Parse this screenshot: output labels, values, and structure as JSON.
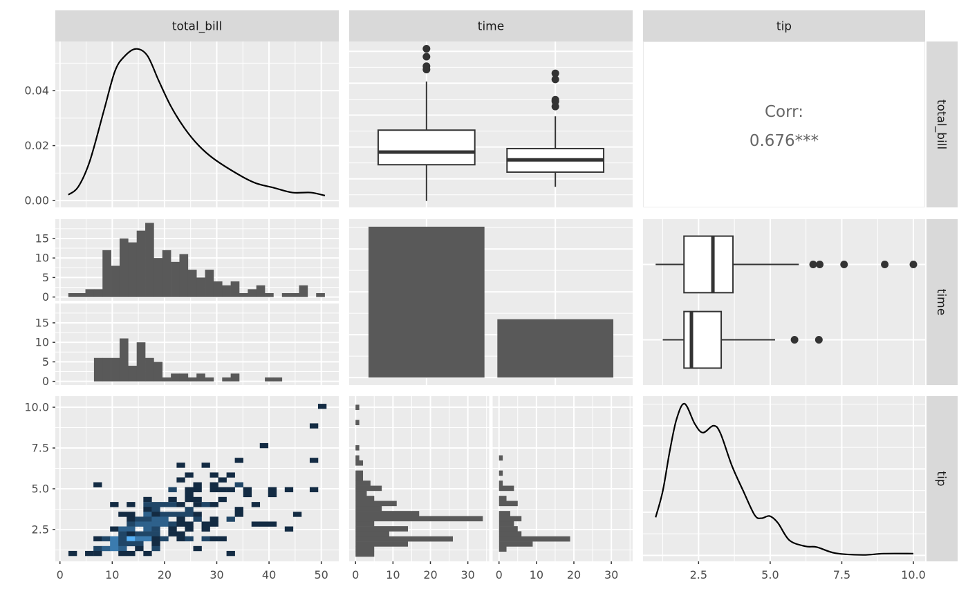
{
  "variables": [
    "total_bill",
    "time",
    "tip"
  ],
  "strips": {
    "top": [
      "total_bill",
      "time",
      "tip"
    ],
    "right": [
      "total_bill",
      "time",
      "tip"
    ]
  },
  "axes": {
    "left": [
      [
        "0.00",
        "0.02",
        "0.04"
      ],
      [
        "0",
        "5",
        "10",
        "15"
      ],
      [
        "2.5",
        "5.0",
        "7.5",
        "10.0"
      ]
    ],
    "bottom": [
      [
        "0",
        "10",
        "20",
        "30",
        "40",
        "50"
      ],
      [
        "0",
        "10",
        "20",
        "30"
      ],
      [
        "2.5",
        "5.0",
        "7.5",
        "10.0"
      ]
    ]
  },
  "colors": {
    "panel_background": "#EBEBEB",
    "strip_background": "#D9D9D9",
    "grid": "#FFFFFF",
    "bar_fill": "#595959",
    "box_line": "#333333",
    "box_fill": "#FFFFFF",
    "density_line": "#000000",
    "bin2d_low": "#132B43",
    "bin2d_high": "#56B1F7",
    "corr_text": "#666666"
  },
  "chart_data": [
    {
      "row": 1,
      "col": 1,
      "type": "density",
      "var": "total_bill",
      "xlim": [
        -0.89,
        53.35
      ],
      "ylim": [
        -0.0025,
        0.0579
      ],
      "xbreaks": [
        0,
        10,
        20,
        30,
        40,
        50
      ],
      "ybreaks": [
        0,
        0.02,
        0.04
      ],
      "x": [
        1.6,
        3.5,
        5.7,
        8.4,
        10.5,
        12.3,
        14.5,
        16.7,
        18.9,
        21.2,
        23.8,
        26.5,
        29.5,
        34.4,
        37.5,
        41.0,
        44.5,
        48.0,
        50.7
      ],
      "y": [
        0.0021,
        0.005,
        0.0143,
        0.0327,
        0.047,
        0.0524,
        0.0552,
        0.0528,
        0.0436,
        0.0344,
        0.0264,
        0.0201,
        0.0151,
        0.0092,
        0.0063,
        0.0046,
        0.0029,
        0.0029,
        0.0018
      ]
    },
    {
      "row": 1,
      "col": 2,
      "type": "boxplot",
      "orientation": "vertical",
      "xvar": "time",
      "yvar": "total_bill",
      "xlim": [
        0.4,
        2.6
      ],
      "ylim": [
        1.05,
        53.1
      ],
      "ybreaks": [
        10,
        20,
        30,
        40,
        50
      ],
      "groups": [
        {
          "lower_whisker": 3.07,
          "q1": 14.44,
          "median": 18.39,
          "q3": 25.29,
          "upper_whisker": 40.55,
          "outliers": [
            44.3,
            45.35,
            48.33,
            50.81
          ]
        },
        {
          "lower_whisker": 7.51,
          "q1": 12.12,
          "median": 15.97,
          "q3": 19.5,
          "upper_whisker": 29.63,
          "outliers": [
            32.68,
            34.3,
            34.83,
            41.19,
            43.11
          ]
        }
      ]
    },
    {
      "row": 1,
      "col": 3,
      "type": "text",
      "label": "Corr:",
      "value": "0.676***"
    },
    {
      "row": 2,
      "col": 1,
      "type": "histogram",
      "var": "total_bill",
      "facet_by": "time",
      "xlim": [
        -0.89,
        53.35
      ],
      "ylim": [
        -0.95,
        19.95
      ],
      "xbreaks": [
        0,
        10,
        20,
        30,
        40,
        50
      ],
      "ybreaks": [
        0,
        5,
        10,
        15
      ],
      "bin_start": 1.6,
      "binwidth": 1.635,
      "facets": [
        {
          "counts": [
            1,
            1,
            2,
            2,
            12,
            8,
            15,
            14,
            17,
            19,
            10,
            12,
            9,
            11,
            7,
            5,
            7,
            4,
            3,
            4,
            1,
            2,
            3,
            1,
            0,
            1,
            1,
            3,
            0,
            1
          ]
        },
        {
          "counts": [
            0,
            0,
            0,
            6,
            6,
            6,
            11,
            4,
            10,
            6,
            5,
            1,
            2,
            2,
            1,
            2,
            1,
            0,
            1,
            2,
            0,
            0,
            0,
            1,
            1,
            0,
            0,
            0,
            0,
            0
          ]
        }
      ]
    },
    {
      "row": 2,
      "col": 2,
      "type": "bar",
      "var": "time",
      "xlim": [
        0.4,
        2.6
      ],
      "ylim": [
        -8.8,
        184.8
      ],
      "ybreaks": [
        0,
        50,
        100,
        150
      ],
      "values": [
        176,
        68
      ]
    },
    {
      "row": 2,
      "col": 3,
      "type": "boxplot",
      "orientation": "horizontal",
      "xvar": "tip",
      "yvar": "time",
      "xlim": [
        0.56,
        10.41
      ],
      "ylim": [
        0.4,
        2.6
      ],
      "xbreaks": [
        2.5,
        5.0,
        7.5,
        10.0
      ],
      "groups": [
        {
          "lower_whisker": 1.0,
          "q1": 1.99,
          "median": 3.0,
          "q3": 3.7,
          "upper_whisker": 6.0,
          "outliers": [
            6.5,
            6.73,
            7.58,
            9.0,
            10.0
          ]
        },
        {
          "lower_whisker": 1.25,
          "q1": 1.99,
          "median": 2.25,
          "q3": 3.29,
          "upper_whisker": 5.17,
          "outliers": [
            5.85,
            6.7
          ]
        }
      ]
    },
    {
      "row": 3,
      "col": 1,
      "type": "heatmap",
      "subtype": "bin2d",
      "xvar": "total_bill",
      "yvar": "tip",
      "xlim": [
        -0.89,
        53.35
      ],
      "ylim": [
        0.55,
        10.68
      ],
      "xbreaks": [
        0,
        10,
        20,
        30,
        40,
        50
      ],
      "ybreaks": [
        2.5,
        5.0,
        7.5,
        10.0
      ],
      "binwidth": [
        1.59,
        0.3
      ],
      "count_max": 6,
      "cells": [
        [
          50.17,
          10.06,
          1
        ],
        [
          48.58,
          8.86,
          1
        ],
        [
          39.03,
          7.65,
          1
        ],
        [
          34.25,
          6.75,
          1
        ],
        [
          48.58,
          6.75,
          1
        ],
        [
          23.11,
          6.45,
          1
        ],
        [
          27.89,
          6.45,
          1
        ],
        [
          24.7,
          5.85,
          1
        ],
        [
          29.48,
          5.85,
          1
        ],
        [
          32.66,
          5.85,
          1
        ],
        [
          23.11,
          5.55,
          1
        ],
        [
          31.07,
          5.55,
          1
        ],
        [
          7.2,
          5.25,
          1
        ],
        [
          26.3,
          5.25,
          1
        ],
        [
          29.48,
          5.25,
          1
        ],
        [
          34.25,
          5.25,
          2
        ],
        [
          21.52,
          4.95,
          2
        ],
        [
          24.7,
          4.95,
          1
        ],
        [
          26.3,
          4.95,
          1
        ],
        [
          29.48,
          4.95,
          1
        ],
        [
          31.07,
          4.95,
          1
        ],
        [
          32.66,
          4.95,
          1
        ],
        [
          35.85,
          4.95,
          1
        ],
        [
          40.62,
          4.95,
          1
        ],
        [
          43.8,
          4.95,
          1
        ],
        [
          48.58,
          4.95,
          1
        ],
        [
          24.7,
          4.65,
          1
        ],
        [
          35.85,
          4.65,
          1
        ],
        [
          40.62,
          4.65,
          1
        ],
        [
          16.75,
          4.35,
          1
        ],
        [
          21.52,
          4.35,
          1
        ],
        [
          24.7,
          4.35,
          1
        ],
        [
          26.3,
          4.35,
          1
        ],
        [
          31.07,
          4.35,
          1
        ],
        [
          10.38,
          4.04,
          1
        ],
        [
          13.56,
          4.04,
          1
        ],
        [
          16.75,
          4.04,
          2
        ],
        [
          18.34,
          4.04,
          2
        ],
        [
          19.93,
          4.04,
          2
        ],
        [
          21.52,
          4.04,
          2
        ],
        [
          23.11,
          4.04,
          1
        ],
        [
          26.3,
          4.04,
          1
        ],
        [
          27.89,
          4.04,
          2
        ],
        [
          29.48,
          4.04,
          1
        ],
        [
          37.44,
          4.04,
          1
        ],
        [
          16.75,
          3.74,
          1
        ],
        [
          18.34,
          3.74,
          2
        ],
        [
          24.7,
          3.74,
          2
        ],
        [
          34.25,
          3.74,
          1
        ],
        [
          11.97,
          3.44,
          1
        ],
        [
          13.56,
          3.44,
          1
        ],
        [
          16.75,
          3.44,
          3
        ],
        [
          18.34,
          3.44,
          1
        ],
        [
          19.93,
          3.44,
          2
        ],
        [
          21.52,
          3.44,
          2
        ],
        [
          23.11,
          3.44,
          2
        ],
        [
          24.7,
          3.44,
          2
        ],
        [
          26.3,
          3.44,
          1
        ],
        [
          34.25,
          3.44,
          1
        ],
        [
          45.4,
          3.44,
          1
        ],
        [
          13.56,
          3.14,
          1
        ],
        [
          15.15,
          3.14,
          2
        ],
        [
          16.75,
          3.14,
          2
        ],
        [
          18.34,
          3.14,
          3
        ],
        [
          19.93,
          3.14,
          3
        ],
        [
          23.11,
          3.14,
          1
        ],
        [
          26.3,
          3.14,
          2
        ],
        [
          29.48,
          3.14,
          1
        ],
        [
          32.66,
          3.14,
          2
        ],
        [
          13.56,
          2.84,
          2
        ],
        [
          15.15,
          2.84,
          3
        ],
        [
          16.75,
          2.84,
          3
        ],
        [
          18.34,
          2.84,
          3
        ],
        [
          19.93,
          2.84,
          3
        ],
        [
          21.52,
          2.84,
          2
        ],
        [
          23.11,
          2.84,
          1
        ],
        [
          24.7,
          2.84,
          1
        ],
        [
          27.89,
          2.84,
          1
        ],
        [
          29.48,
          2.84,
          1
        ],
        [
          37.44,
          2.84,
          1
        ],
        [
          39.03,
          2.84,
          1
        ],
        [
          40.62,
          2.84,
          1
        ],
        [
          10.38,
          2.54,
          1
        ],
        [
          11.97,
          2.54,
          3
        ],
        [
          13.56,
          2.54,
          3
        ],
        [
          16.75,
          2.54,
          3
        ],
        [
          18.34,
          2.54,
          2
        ],
        [
          21.52,
          2.54,
          1
        ],
        [
          24.7,
          2.54,
          1
        ],
        [
          27.89,
          2.54,
          1
        ],
        [
          43.8,
          2.54,
          1
        ],
        [
          11.97,
          2.24,
          2
        ],
        [
          13.56,
          2.24,
          1
        ],
        [
          15.15,
          2.24,
          2
        ],
        [
          16.75,
          2.24,
          2
        ],
        [
          18.34,
          2.24,
          2
        ],
        [
          21.52,
          2.24,
          1
        ],
        [
          23.11,
          2.24,
          1
        ],
        [
          7.2,
          1.94,
          1
        ],
        [
          8.79,
          1.94,
          2
        ],
        [
          10.38,
          1.94,
          4
        ],
        [
          11.97,
          1.94,
          2
        ],
        [
          13.56,
          1.94,
          6
        ],
        [
          15.15,
          1.94,
          4
        ],
        [
          16.75,
          1.94,
          4
        ],
        [
          18.34,
          1.94,
          1
        ],
        [
          19.93,
          1.94,
          2
        ],
        [
          23.11,
          1.94,
          1
        ],
        [
          24.7,
          1.94,
          2
        ],
        [
          27.89,
          1.94,
          2
        ],
        [
          29.48,
          1.94,
          1
        ],
        [
          31.07,
          1.94,
          1
        ],
        [
          10.38,
          1.64,
          4
        ],
        [
          11.97,
          1.64,
          2
        ],
        [
          13.56,
          1.64,
          2
        ],
        [
          15.15,
          1.64,
          2
        ],
        [
          18.34,
          1.64,
          1
        ],
        [
          7.2,
          1.34,
          2
        ],
        [
          8.79,
          1.34,
          3
        ],
        [
          10.38,
          1.34,
          4
        ],
        [
          11.97,
          1.34,
          3
        ],
        [
          15.15,
          1.34,
          1
        ],
        [
          18.34,
          1.34,
          2
        ],
        [
          26.3,
          1.34,
          1
        ],
        [
          2.42,
          1.04,
          1
        ],
        [
          5.6,
          1.04,
          1
        ],
        [
          7.2,
          1.04,
          1
        ],
        [
          11.97,
          1.04,
          1
        ],
        [
          13.56,
          1.04,
          1
        ],
        [
          16.75,
          1.04,
          1
        ],
        [
          32.66,
          1.04,
          1
        ]
      ]
    },
    {
      "row": 3,
      "col": 2,
      "type": "histogram",
      "orientation": "horizontal",
      "var": "tip",
      "facet_by": "time",
      "xlim": [
        -1.7,
        35.7
      ],
      "ylim": [
        0.55,
        10.68
      ],
      "xbreaks": [
        0,
        10,
        20,
        30
      ],
      "ybreaks": [
        2.5,
        5.0,
        7.5,
        10.0
      ],
      "bin_center_start": 1.0,
      "binwidth": 0.3103,
      "facets": [
        {
          "counts": [
            5,
            5,
            14,
            26,
            9,
            14,
            5,
            34,
            17,
            7,
            11,
            5,
            3,
            7,
            4,
            2,
            2,
            0,
            2,
            1,
            0,
            1,
            0,
            0,
            0,
            0,
            1,
            0,
            0,
            1
          ]
        },
        {
          "counts": [
            0,
            2,
            9,
            19,
            6,
            5,
            4,
            6,
            3,
            0,
            5,
            2,
            0,
            4,
            1,
            0,
            1,
            0,
            0,
            1,
            0,
            0,
            0,
            0,
            0,
            0,
            0,
            0,
            0,
            0
          ]
        }
      ]
    },
    {
      "row": 3,
      "col": 3,
      "type": "density",
      "var": "tip",
      "xlim": [
        0.56,
        10.41
      ],
      "ylim": [
        -0.0139,
        0.3685
      ],
      "xbreaks": [
        2.5,
        5.0,
        7.5,
        10.0
      ],
      "ybreaks": [
        0,
        0.1,
        0.2,
        0.3
      ],
      "x": [
        1.0,
        1.25,
        1.49,
        1.73,
        2.01,
        2.37,
        2.65,
        3.02,
        3.26,
        3.66,
        4.06,
        4.46,
        4.7,
        4.98,
        5.27,
        5.67,
        6.23,
        6.63,
        7.28,
        8.24,
        8.97,
        10.0
      ],
      "y": [
        0.088,
        0.149,
        0.24,
        0.315,
        0.351,
        0.304,
        0.284,
        0.3,
        0.283,
        0.208,
        0.149,
        0.093,
        0.086,
        0.091,
        0.075,
        0.035,
        0.021,
        0.019,
        0.005,
        0.001,
        0.004,
        0.004
      ]
    }
  ]
}
